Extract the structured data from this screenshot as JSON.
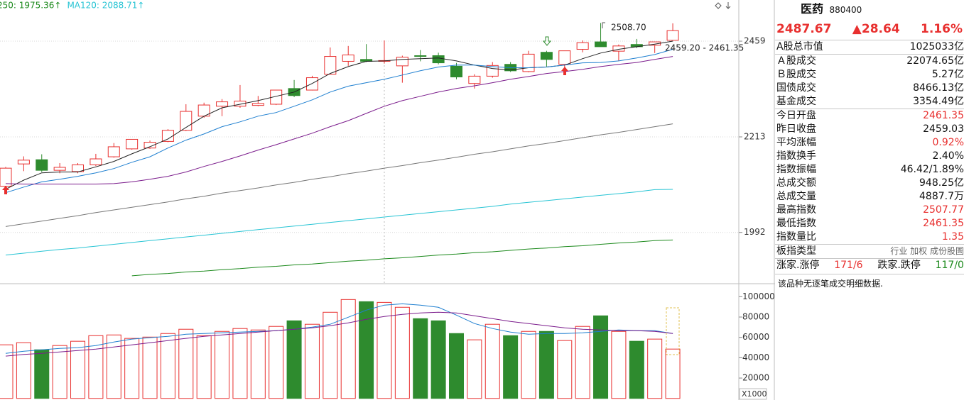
{
  "chart_data": [
    {
      "type": "candlestick",
      "log_scale": true,
      "grid": true,
      "legend": [
        {
          "text": "250: 1975.36↑",
          "color": "#1d8a1d"
        },
        {
          "text": "MA120: 2088.71↑",
          "color": "#27c4d4"
        }
      ],
      "ylim": [
        1890,
        2573
      ],
      "yticks": [
        1992,
        2213,
        2459
      ],
      "up_color": "#e8302f",
      "down_color": "#2e8b2e",
      "open": [
        2096,
        2148,
        2158,
        2133,
        2130,
        2146,
        2165,
        2184,
        2186,
        2202,
        2229,
        2264,
        2289,
        2289,
        2291,
        2294,
        2334,
        2330,
        2371,
        2405,
        2410,
        2405,
        2393,
        2420,
        2420,
        2392,
        2347,
        2366,
        2397,
        2378,
        2429,
        2397,
        2437,
        2457,
        2432,
        2450,
        2448,
        2461.35
      ],
      "high": [
        2141,
        2166,
        2171,
        2150,
        2150,
        2172,
        2198,
        2207,
        2204,
        2232,
        2294,
        2298,
        2307,
        2343,
        2315,
        2330,
        2356,
        2367,
        2442,
        2446,
        2451,
        2461,
        2420,
        2435,
        2428,
        2401,
        2371,
        2403,
        2403,
        2433,
        2433,
        2433,
        2461,
        2508.7,
        2450,
        2465,
        2457,
        2507.77
      ],
      "low": [
        2085,
        2131,
        2129,
        2126,
        2126,
        2143,
        2163,
        2182,
        2184,
        2200,
        2227,
        2260,
        2264,
        2285,
        2289,
        2292,
        2312,
        2329,
        2371,
        2393,
        2403,
        2399,
        2349,
        2405,
        2397,
        2358,
        2334,
        2362,
        2377,
        2376,
        2391,
        2388,
        2429,
        2444,
        2406,
        2440,
        2427,
        2461.35
      ],
      "close": [
        2138,
        2157,
        2133,
        2140,
        2146,
        2160,
        2189,
        2207,
        2200,
        2229,
        2276,
        2292,
        2300,
        2302,
        2296,
        2330,
        2316,
        2362,
        2418,
        2422,
        2405,
        2407,
        2416,
        2418,
        2401,
        2364,
        2366,
        2394,
        2380,
        2424,
        2410,
        2433,
        2455,
        2444,
        2446,
        2444,
        2457,
        2487.67
      ],
      "lines": [
        {
          "color": "#222222",
          "values": [
            2089,
            2110,
            2127,
            2129,
            2129,
            2141,
            2154,
            2172,
            2189,
            2208,
            2236,
            2264,
            2285,
            2294,
            2303,
            2314,
            2325,
            2347,
            2373,
            2391,
            2405,
            2406,
            2410,
            2412,
            2414,
            2406,
            2395,
            2386,
            2382,
            2388,
            2390,
            2395,
            2412,
            2427,
            2437,
            2444,
            2451,
            2459
          ]
        },
        {
          "color": "#1e7fd0",
          "values": [
            2081,
            2094,
            2106,
            2112,
            2119,
            2127,
            2137,
            2152,
            2165,
            2186,
            2205,
            2220,
            2238,
            2250,
            2264,
            2273,
            2289,
            2305,
            2325,
            2340,
            2349,
            2358,
            2369,
            2380,
            2390,
            2395,
            2395,
            2391,
            2388,
            2388,
            2390,
            2395,
            2401,
            2402,
            2406,
            2414,
            2423,
            2437
          ]
        },
        {
          "color": "#7b1c8c",
          "values": [
            2102,
            2101,
            2101,
            2101,
            2101,
            2101,
            2102,
            2106,
            2112,
            2119,
            2129,
            2142,
            2154,
            2167,
            2181,
            2194,
            2208,
            2222,
            2238,
            2253,
            2271,
            2289,
            2303,
            2314,
            2325,
            2334,
            2341,
            2349,
            2358,
            2365,
            2373,
            2378,
            2384,
            2391,
            2397,
            2402,
            2410,
            2418
          ]
        },
        {
          "color": "#777777",
          "values": [
            2005,
            2011,
            2017,
            2023,
            2029,
            2036,
            2042,
            2048,
            2054,
            2060,
            2067,
            2073,
            2080,
            2086,
            2092,
            2099,
            2105,
            2112,
            2118,
            2125,
            2131,
            2138,
            2144,
            2151,
            2157,
            2164,
            2171,
            2177,
            2184,
            2191,
            2197,
            2204,
            2211,
            2218,
            2224,
            2231,
            2238,
            2245
          ]
        },
        {
          "color": "#27c4d4",
          "values": [
            1943,
            1947,
            1951,
            1955,
            1958,
            1962,
            1966,
            1970,
            1974,
            1978,
            1982,
            1986,
            1990,
            1994,
            1998,
            2002,
            2006,
            2010,
            2014,
            2018,
            2022,
            2026,
            2030,
            2034,
            2038,
            2042,
            2046,
            2050,
            2055,
            2059,
            2063,
            2067,
            2071,
            2075,
            2079,
            2083,
            2088,
            2088.71
          ]
        },
        {
          "color": "#1d8a1d",
          "values": [
            null,
            null,
            null,
            null,
            null,
            null,
            null,
            1899,
            1902,
            1904,
            1907,
            1909,
            1912,
            1914,
            1917,
            1919,
            1922,
            1924,
            1927,
            1930,
            1932,
            1935,
            1937,
            1940,
            1943,
            1945,
            1948,
            1950,
            1953,
            1956,
            1958,
            1961,
            1963,
            1966,
            1969,
            1971,
            1974,
            1975.36
          ]
        }
      ],
      "annotations": [
        "2508.70",
        "2459.20 - 2461.35"
      ]
    },
    {
      "type": "volume",
      "ylim": [
        0,
        110000
      ],
      "yticks": [
        20000,
        40000,
        60000,
        80000,
        100000
      ],
      "unit_label": "X1000",
      "values": [
        52700,
        54800,
        47800,
        52000,
        56200,
        61700,
        62400,
        59000,
        60300,
        63800,
        68000,
        61700,
        65900,
        68700,
        67300,
        70800,
        76300,
        72900,
        84700,
        97200,
        95100,
        94400,
        89600,
        78400,
        76300,
        63800,
        57600,
        72900,
        61700,
        65900,
        65900,
        56900,
        70800,
        81200,
        65900,
        56200,
        58300,
        48500
      ],
      "lines": [
        {
          "color": "#1e7fd0",
          "values": [
            44300,
            46400,
            47800,
            49200,
            49900,
            52000,
            55500,
            58300,
            59700,
            61000,
            63100,
            63800,
            64500,
            65200,
            65900,
            66600,
            68000,
            70100,
            72900,
            79800,
            86800,
            91700,
            93000,
            91700,
            89600,
            81900,
            73600,
            68700,
            65200,
            63100,
            63800,
            63800,
            64500,
            65900,
            67300,
            66600,
            66600,
            63800
          ]
        },
        {
          "color": "#7b1c8c",
          "values": [
            41600,
            43300,
            44300,
            45700,
            47100,
            48500,
            50600,
            52700,
            54800,
            56900,
            59000,
            61000,
            62400,
            63800,
            65200,
            66600,
            68000,
            69400,
            71500,
            74300,
            77700,
            80500,
            82600,
            84000,
            84700,
            84000,
            81200,
            78400,
            75600,
            73600,
            71500,
            69400,
            68000,
            67300,
            66600,
            66600,
            65900,
            63800
          ]
        }
      ]
    }
  ],
  "panel": {
    "name": "医药",
    "code": "880400",
    "price": "2487.67",
    "change": "▲28.64",
    "pct": "1.16%",
    "price_color": "#e8302f",
    "rows": [
      {
        "label": "A股总市值",
        "value": "1025033亿",
        "color": "#111111",
        "sep": true
      },
      {
        "label": "Ａ股成交",
        "value": "22074.65亿",
        "color": "#111111",
        "sep": true
      },
      {
        "label": "Ｂ股成交",
        "value": "5.27亿",
        "color": "#111111",
        "sep": false
      },
      {
        "label": "国债成交",
        "value": "8466.13亿",
        "color": "#111111",
        "sep": false
      },
      {
        "label": "基金成交",
        "value": "3354.49亿",
        "color": "#111111",
        "sep": false
      },
      {
        "label": "今日开盘",
        "value": "2461.35",
        "color": "#e8302f",
        "sep": true
      },
      {
        "label": "昨日收盘",
        "value": "2459.03",
        "color": "#111111",
        "sep": false
      },
      {
        "label": "平均涨幅",
        "value": "0.92%",
        "color": "#e8302f",
        "sep": false
      },
      {
        "label": "指数换手",
        "value": "2.40%",
        "color": "#111111",
        "sep": false
      },
      {
        "label": "指数振幅",
        "value": "46.42/1.89%",
        "color": "#111111",
        "sep": false
      },
      {
        "label": "总成交额",
        "value": "948.25亿",
        "color": "#111111",
        "sep": false
      },
      {
        "label": "总成交量",
        "value": "4887.7万",
        "color": "#111111",
        "sep": false
      },
      {
        "label": "最高指数",
        "value": "2507.77",
        "color": "#e8302f",
        "sep": false
      },
      {
        "label": "最低指数",
        "value": "2461.35",
        "color": "#e8302f",
        "sep": false
      },
      {
        "label": "指数量比",
        "value": "1.35",
        "color": "#e8302f",
        "sep": false
      },
      {
        "label": "板指类型",
        "value": "行业 加权 成份股圄",
        "color": "#666666",
        "sep": true
      }
    ],
    "breadth": [
      {
        "text": "涨家.涨停",
        "color": "#111111"
      },
      {
        "text": "171/6",
        "color": "#e8302f"
      },
      {
        "text": "跌家.跌停",
        "color": "#111111"
      },
      {
        "text": "117/0",
        "color": "#1d8a1d"
      }
    ],
    "note": "该品种无逐笔成交明细数据."
  }
}
